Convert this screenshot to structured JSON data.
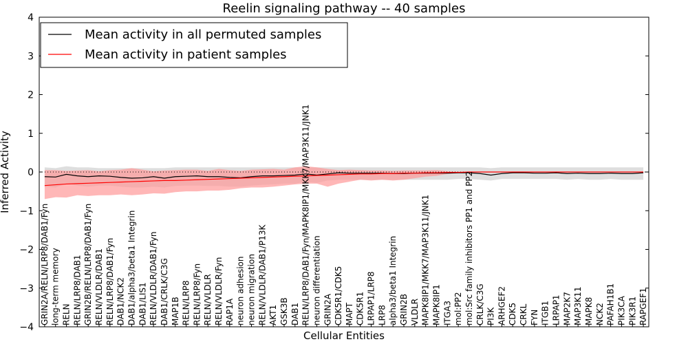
{
  "chart_data": {
    "type": "line",
    "title": "Reelin signaling pathway -- 40 samples",
    "xlabel": "Cellular Entities",
    "ylabel": "Inferred Activity",
    "ylim": [
      -4,
      4
    ],
    "yticks": [
      4,
      3,
      2,
      1,
      0,
      -1,
      -2,
      -3,
      -4
    ],
    "ytick_labels": [
      "4",
      "3",
      "2",
      "1",
      "0",
      "−1",
      "−2",
      "−3",
      "−4"
    ],
    "legend_position": "top-left",
    "categories": [
      "GRIN2A/RELN/LRP8/DAB1/Fyn",
      "long-term memory",
      "RELN",
      "RELN/LRP8/DAB1",
      "GRIN2B/RELN/LRP8/DAB1/Fyn",
      "RELN/VLDLR/DAB1",
      "RELN/LRP8/DAB1/Fyn",
      "DAB1/NCK2",
      "DAB1/alpha3/beta1 Integrin",
      "DAB1/LIS1",
      "RELN/VLDLR/DAB1/Fyn",
      "DAB1/CRLK/C3G",
      "MAP1B",
      "RELN/LRP8",
      "RELN/LRP8/Fyn",
      "RELN/VLDLR",
      "RELN/VLDLR/Fyn",
      "RAP1A",
      "neuron adhesion",
      "neuron migration",
      "RELN/VLDLR/DAB1/P13K",
      "AKT1",
      "GSK3B",
      "DAB1",
      "RELN/LRP8/DAB1/Fyn/MAPK8IP1/MKK7/MAP3K11/JNK1",
      "neuron differentiation",
      "GRIN2A",
      "CDK5R1/CDK5",
      "MAPT",
      "CDK5R1",
      "LRPAP1/LRP8",
      "LRP8",
      "alpha3/beta1 Integrin",
      "GRIN2B",
      "VLDLR",
      "MAPK8IP1/MKK7/MAP3K11/JNK1",
      "MAPK8IP1",
      "ITGA3",
      "mol:PP2",
      "mol:Src family inhibitors PP1 and PP2",
      "CRLK/C3G",
      "PI3K",
      "ARHGEF2",
      "CDK5",
      "CRKL",
      "FYN",
      "ITGB1",
      "LRPAP1",
      "MAP2K7",
      "MAP3K11",
      "MAPK8",
      "NCK2",
      "PAFAH1B1",
      "PIK3CA",
      "PIK3R1",
      "RAPGEF1"
    ],
    "series": [
      {
        "name": "Mean activity in all permuted samples",
        "color": "#000000",
        "band_color": "#c8c8c8",
        "values": [
          -0.12,
          -0.13,
          -0.06,
          -0.1,
          -0.12,
          -0.1,
          -0.11,
          -0.14,
          -0.16,
          -0.15,
          -0.12,
          -0.16,
          -0.12,
          -0.11,
          -0.1,
          -0.12,
          -0.12,
          -0.14,
          -0.15,
          -0.12,
          -0.1,
          -0.1,
          -0.09,
          -0.08,
          -0.05,
          -0.08,
          -0.05,
          -0.02,
          -0.03,
          -0.03,
          -0.03,
          -0.03,
          -0.04,
          -0.04,
          -0.03,
          -0.03,
          -0.03,
          -0.03,
          -0.02,
          -0.02,
          -0.04,
          -0.08,
          -0.04,
          -0.02,
          -0.02,
          -0.03,
          -0.03,
          -0.02,
          -0.04,
          -0.03,
          -0.04,
          -0.04,
          -0.03,
          -0.04,
          -0.04,
          -0.02
        ],
        "band_upper": [
          0.12,
          0.1,
          0.15,
          0.12,
          0.12,
          0.1,
          0.1,
          0.1,
          0.1,
          0.1,
          0.1,
          0.1,
          0.12,
          0.12,
          0.12,
          0.12,
          0.12,
          0.12,
          0.12,
          0.12,
          0.12,
          0.12,
          0.12,
          0.12,
          0.12,
          0.12,
          0.12,
          0.12,
          0.12,
          0.12,
          0.12,
          0.12,
          0.12,
          0.12,
          0.12,
          0.12,
          0.12,
          0.12,
          0.12,
          0.12,
          0.12,
          0.1,
          0.12,
          0.12,
          0.12,
          0.12,
          0.12,
          0.12,
          0.12,
          0.12,
          0.12,
          0.12,
          0.12,
          0.12,
          0.12,
          0.12
        ],
        "band_lower": [
          -0.38,
          -0.4,
          -0.3,
          -0.35,
          -0.38,
          -0.35,
          -0.35,
          -0.38,
          -0.4,
          -0.4,
          -0.38,
          -0.4,
          -0.36,
          -0.35,
          -0.35,
          -0.36,
          -0.36,
          -0.38,
          -0.38,
          -0.35,
          -0.33,
          -0.32,
          -0.3,
          -0.3,
          -0.25,
          -0.28,
          -0.22,
          -0.2,
          -0.2,
          -0.2,
          -0.2,
          -0.2,
          -0.2,
          -0.2,
          -0.2,
          -0.2,
          -0.2,
          -0.2,
          -0.18,
          -0.18,
          -0.2,
          -0.22,
          -0.18,
          -0.18,
          -0.18,
          -0.18,
          -0.18,
          -0.18,
          -0.2,
          -0.18,
          -0.2,
          -0.2,
          -0.18,
          -0.2,
          -0.2,
          -0.2
        ]
      },
      {
        "name": "Mean activity in patient samples",
        "color": "#ff0000",
        "band_color": "#ff9999",
        "values": [
          -0.35,
          -0.33,
          -0.31,
          -0.3,
          -0.29,
          -0.28,
          -0.27,
          -0.26,
          -0.25,
          -0.24,
          -0.23,
          -0.22,
          -0.22,
          -0.21,
          -0.2,
          -0.19,
          -0.18,
          -0.17,
          -0.16,
          -0.15,
          -0.14,
          -0.13,
          -0.12,
          -0.11,
          -0.1,
          -0.09,
          -0.08,
          -0.07,
          -0.06,
          -0.05,
          -0.05,
          -0.04,
          -0.04,
          -0.03,
          -0.03,
          -0.02,
          -0.02,
          -0.01,
          -0.01,
          0.0,
          0.0,
          0.0,
          0.0,
          0.0,
          0.0,
          0.0,
          0.0,
          0.0,
          0.0,
          0.0,
          0.0,
          0.0,
          0.0,
          0.0,
          0.0,
          0.0
        ],
        "band_upper": [
          0.05,
          0.05,
          0.03,
          0.04,
          0.05,
          0.02,
          0.05,
          0.06,
          0.1,
          0.06,
          0.02,
          0.04,
          0.05,
          0.06,
          0.06,
          0.03,
          0.08,
          0.05,
          0.03,
          0.06,
          0.07,
          0.08,
          0.06,
          0.12,
          0.15,
          0.12,
          0.08,
          0.05,
          0.06,
          0.05,
          0.04,
          0.04,
          0.03,
          0.04,
          0.04,
          0.04,
          0.05,
          0.02,
          0.01,
          0.01,
          0.0,
          0.0,
          0.0,
          0.0,
          0.0,
          0.0,
          0.0,
          0.0,
          0.0,
          0.0,
          0.0,
          0.0,
          0.0,
          0.0,
          0.0,
          0.0
        ],
        "band_lower": [
          -0.7,
          -0.65,
          -0.66,
          -0.6,
          -0.62,
          -0.6,
          -0.6,
          -0.58,
          -0.6,
          -0.58,
          -0.55,
          -0.56,
          -0.52,
          -0.5,
          -0.5,
          -0.48,
          -0.48,
          -0.46,
          -0.42,
          -0.4,
          -0.4,
          -0.38,
          -0.35,
          -0.32,
          -0.3,
          -0.3,
          -0.38,
          -0.3,
          -0.25,
          -0.2,
          -0.22,
          -0.2,
          -0.22,
          -0.2,
          -0.16,
          -0.12,
          -0.1,
          -0.05,
          -0.03,
          -0.01,
          0.0,
          0.0,
          0.0,
          0.0,
          0.0,
          0.0,
          0.0,
          0.0,
          0.0,
          0.0,
          0.0,
          0.0,
          0.0,
          0.0,
          0.0,
          0.0
        ]
      }
    ]
  }
}
